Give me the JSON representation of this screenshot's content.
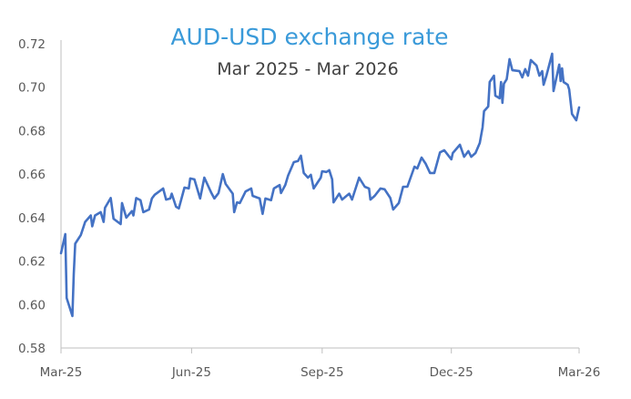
{
  "chart_data": {
    "type": "line",
    "title": "AUD-USD exchange rate",
    "subtitle": "Mar 2025 - Mar 2026",
    "xlabel": "",
    "ylabel": "",
    "ylim": [
      0.58,
      0.72
    ],
    "xlim": [
      "2025-03-01",
      "2026-03-01"
    ],
    "grid": false,
    "legend": "none",
    "y_ticks": [
      "0.58",
      "0.60",
      "0.62",
      "0.64",
      "0.66",
      "0.68",
      "0.70",
      "0.72"
    ],
    "x_ticks": [
      {
        "label": "Mar-25",
        "date": "2025-03-01"
      },
      {
        "label": "Jun-25",
        "date": "2025-06-01"
      },
      {
        "label": "Sep-25",
        "date": "2025-09-01"
      },
      {
        "label": "Dec-25",
        "date": "2025-12-01"
      },
      {
        "label": "Mar-26",
        "date": "2026-03-01"
      }
    ],
    "colors": {
      "title": "#3A9AD9",
      "line": "#4472C4",
      "axis": "#BFBFBF"
    },
    "series": [
      {
        "x": [
          "2025-03-01",
          "2025-03-04",
          "2025-03-05",
          "2025-03-09",
          "2025-03-10",
          "2025-03-11",
          "2025-03-15",
          "2025-03-18",
          "2025-03-22",
          "2025-03-23",
          "2025-03-25",
          "2025-03-29",
          "2025-03-31",
          "2025-04-01",
          "2025-04-05",
          "2025-04-07",
          "2025-04-12",
          "2025-04-13",
          "2025-04-16",
          "2025-04-20",
          "2025-04-21",
          "2025-04-23",
          "2025-04-26",
          "2025-04-28",
          "2025-05-02",
          "2025-05-04",
          "2025-05-06",
          "2025-05-12",
          "2025-05-14",
          "2025-05-17",
          "2025-05-18",
          "2025-05-21",
          "2025-05-23",
          "2025-05-27",
          "2025-05-30",
          "2025-05-31",
          "2025-06-03",
          "2025-06-07",
          "2025-06-10",
          "2025-06-15",
          "2025-06-17",
          "2025-06-20",
          "2025-06-23",
          "2025-06-25",
          "2025-06-30",
          "2025-07-01",
          "2025-07-03",
          "2025-07-05",
          "2025-07-09",
          "2025-07-13",
          "2025-07-14",
          "2025-07-19",
          "2025-07-21",
          "2025-07-23",
          "2025-07-27",
          "2025-07-29",
          "2025-08-02",
          "2025-08-03",
          "2025-08-06",
          "2025-08-08",
          "2025-08-12",
          "2025-08-15",
          "2025-08-17",
          "2025-08-19",
          "2025-08-22",
          "2025-08-24",
          "2025-08-26",
          "2025-08-31",
          "2025-09-01",
          "2025-09-04",
          "2025-09-06",
          "2025-09-08",
          "2025-09-09",
          "2025-09-13",
          "2025-09-15",
          "2025-09-20",
          "2025-09-22",
          "2025-09-27",
          "2025-10-01",
          "2025-10-04",
          "2025-10-05",
          "2025-10-08",
          "2025-10-12",
          "2025-10-15",
          "2025-10-19",
          "2025-10-21",
          "2025-10-25",
          "2025-10-28",
          "2025-10-31",
          "2025-11-05",
          "2025-11-07",
          "2025-11-10",
          "2025-11-13",
          "2025-11-16",
          "2025-11-19",
          "2025-11-23",
          "2025-11-26",
          "2025-12-01",
          "2025-12-02",
          "2025-12-07",
          "2025-12-10",
          "2025-12-13",
          "2025-12-15",
          "2025-12-18",
          "2025-12-21",
          "2025-12-23",
          "2025-12-24",
          "2025-12-27",
          "2025-12-28",
          "2025-12-31",
          "2026-01-01",
          "2026-01-04",
          "2026-01-05",
          "2026-01-06",
          "2026-01-07",
          "2026-01-09",
          "2026-01-11",
          "2026-01-13",
          "2026-01-18",
          "2026-01-20",
          "2026-01-22",
          "2026-01-24",
          "2026-01-26",
          "2026-01-30",
          "2026-02-01",
          "2026-02-03",
          "2026-02-04",
          "2026-02-06",
          "2026-02-10",
          "2026-02-11",
          "2026-02-15",
          "2026-02-16",
          "2026-02-17",
          "2026-02-18",
          "2026-02-21",
          "2026-02-22",
          "2026-02-24",
          "2026-02-27",
          "2026-03-01"
        ],
        "values": [
          0.6236,
          0.6324,
          0.603,
          0.5947,
          0.614,
          0.628,
          0.632,
          0.638,
          0.641,
          0.636,
          0.641,
          0.6425,
          0.638,
          0.6445,
          0.649,
          0.6395,
          0.637,
          0.6467,
          0.64,
          0.643,
          0.641,
          0.649,
          0.648,
          0.6425,
          0.6437,
          0.6488,
          0.6505,
          0.6534,
          0.6483,
          0.6488,
          0.651,
          0.645,
          0.6442,
          0.6538,
          0.6534,
          0.658,
          0.6576,
          0.6488,
          0.6584,
          0.6513,
          0.6488,
          0.6513,
          0.66,
          0.6555,
          0.651,
          0.6425,
          0.647,
          0.6467,
          0.652,
          0.6534,
          0.65,
          0.6488,
          0.6417,
          0.6488,
          0.648,
          0.6534,
          0.655,
          0.6513,
          0.655,
          0.6593,
          0.6655,
          0.666,
          0.6685,
          0.6605,
          0.6584,
          0.6597,
          0.6534,
          0.6584,
          0.6613,
          0.661,
          0.6618,
          0.6576,
          0.647,
          0.651,
          0.6483,
          0.651,
          0.6483,
          0.6584,
          0.6542,
          0.6534,
          0.6483,
          0.65,
          0.6534,
          0.653,
          0.649,
          0.6437,
          0.6467,
          0.6542,
          0.6542,
          0.6634,
          0.6626,
          0.6676,
          0.6647,
          0.6605,
          0.6605,
          0.67,
          0.671,
          0.6668,
          0.6697,
          0.6735,
          0.668,
          0.6706,
          0.668,
          0.6697,
          0.6743,
          0.6815,
          0.689,
          0.6911,
          0.7024,
          0.7053,
          0.6961,
          0.6949,
          0.7024,
          0.6928,
          0.7016,
          0.7037,
          0.7129,
          0.7078,
          0.7074,
          0.7045,
          0.7083,
          0.7053,
          0.7125,
          0.71,
          0.7053,
          0.7074,
          0.7011,
          0.7053,
          0.7154,
          0.6982,
          0.7104,
          0.7028,
          0.7087,
          0.7024,
          0.7011,
          0.699,
          0.6877,
          0.6848,
          0.6907
        ]
      }
    ]
  }
}
